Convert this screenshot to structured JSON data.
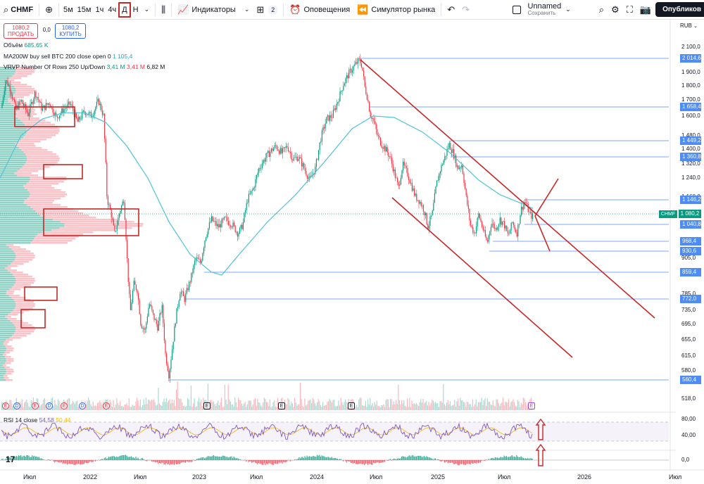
{
  "toolbar": {
    "symbol": "CHMF",
    "intervals": [
      "5м",
      "15м",
      "1ч",
      "4ч",
      "Д",
      "Н"
    ],
    "active_interval": "Д",
    "indicators_label": "Индикаторы",
    "layouts_count": "2",
    "alerts_label": "Оповещения",
    "replay_label": "Симулятор рынка",
    "layout_name": "Unnamed",
    "layout_status": "Сохранить",
    "publish_label": "Опубликов"
  },
  "legend": {
    "sell_price": "1080,2",
    "sell_label": "ПРОДАТЬ",
    "spread": "0,0",
    "buy_price": "1080,2",
    "buy_label": "КУПИТЬ",
    "volume_label": "Объём",
    "volume_value": "685,65 K",
    "ma_label": "MA200W buy sell BTC 200 close open 0",
    "ma_value": "1 105,4",
    "vrvp_label": "VRVP Number Of Rows 250 Up/Down",
    "vrvp_up": "3,41 M",
    "vrvp_down": "3,41 M",
    "vrvp_total": "6,82 M",
    "rsi_label": "RSI 14 close",
    "rsi_value": "54,58",
    "rsi_ma": "50,44"
  },
  "price_axis": {
    "currency": "RUB",
    "ticks": [
      "2 100,0",
      "1 900,0",
      "1 800,0",
      "1 700,0",
      "1 600,0",
      "1 480,0",
      "1 400,0",
      "1 320,0",
      "1 240,0",
      "1 160,0",
      "905,0",
      "785,0",
      "735,0",
      "695,0",
      "655,0",
      "615,0",
      "580,0",
      "518,0"
    ],
    "levels": [
      "2 014,6",
      "1 658,4",
      "1 449,2",
      "1 360,8",
      "1 146,2",
      "1 040,8",
      "968,4",
      "930,6",
      "859,4",
      "772,0",
      "560,4"
    ],
    "current_price": "1 080,2",
    "current_symbol": "CHMF",
    "rsi_ticks": [
      "80,00",
      "40,00"
    ],
    "macd_ticks": [
      "0,0"
    ]
  },
  "time_axis": [
    "Июл",
    "2022",
    "Июл",
    "2023",
    "Июл",
    "2024",
    "Июл",
    "2025",
    "Июл",
    "2026",
    "Июл"
  ],
  "events": [
    "E",
    "D",
    "E",
    "D",
    "E",
    "D",
    "E",
    "E",
    "E",
    "E",
    "E",
    "E"
  ],
  "colors": {
    "up": "#089981",
    "down": "#f23645",
    "ma": "#4fc3d6",
    "level": "#4f8cf7",
    "annotation": "#c62828"
  }
}
